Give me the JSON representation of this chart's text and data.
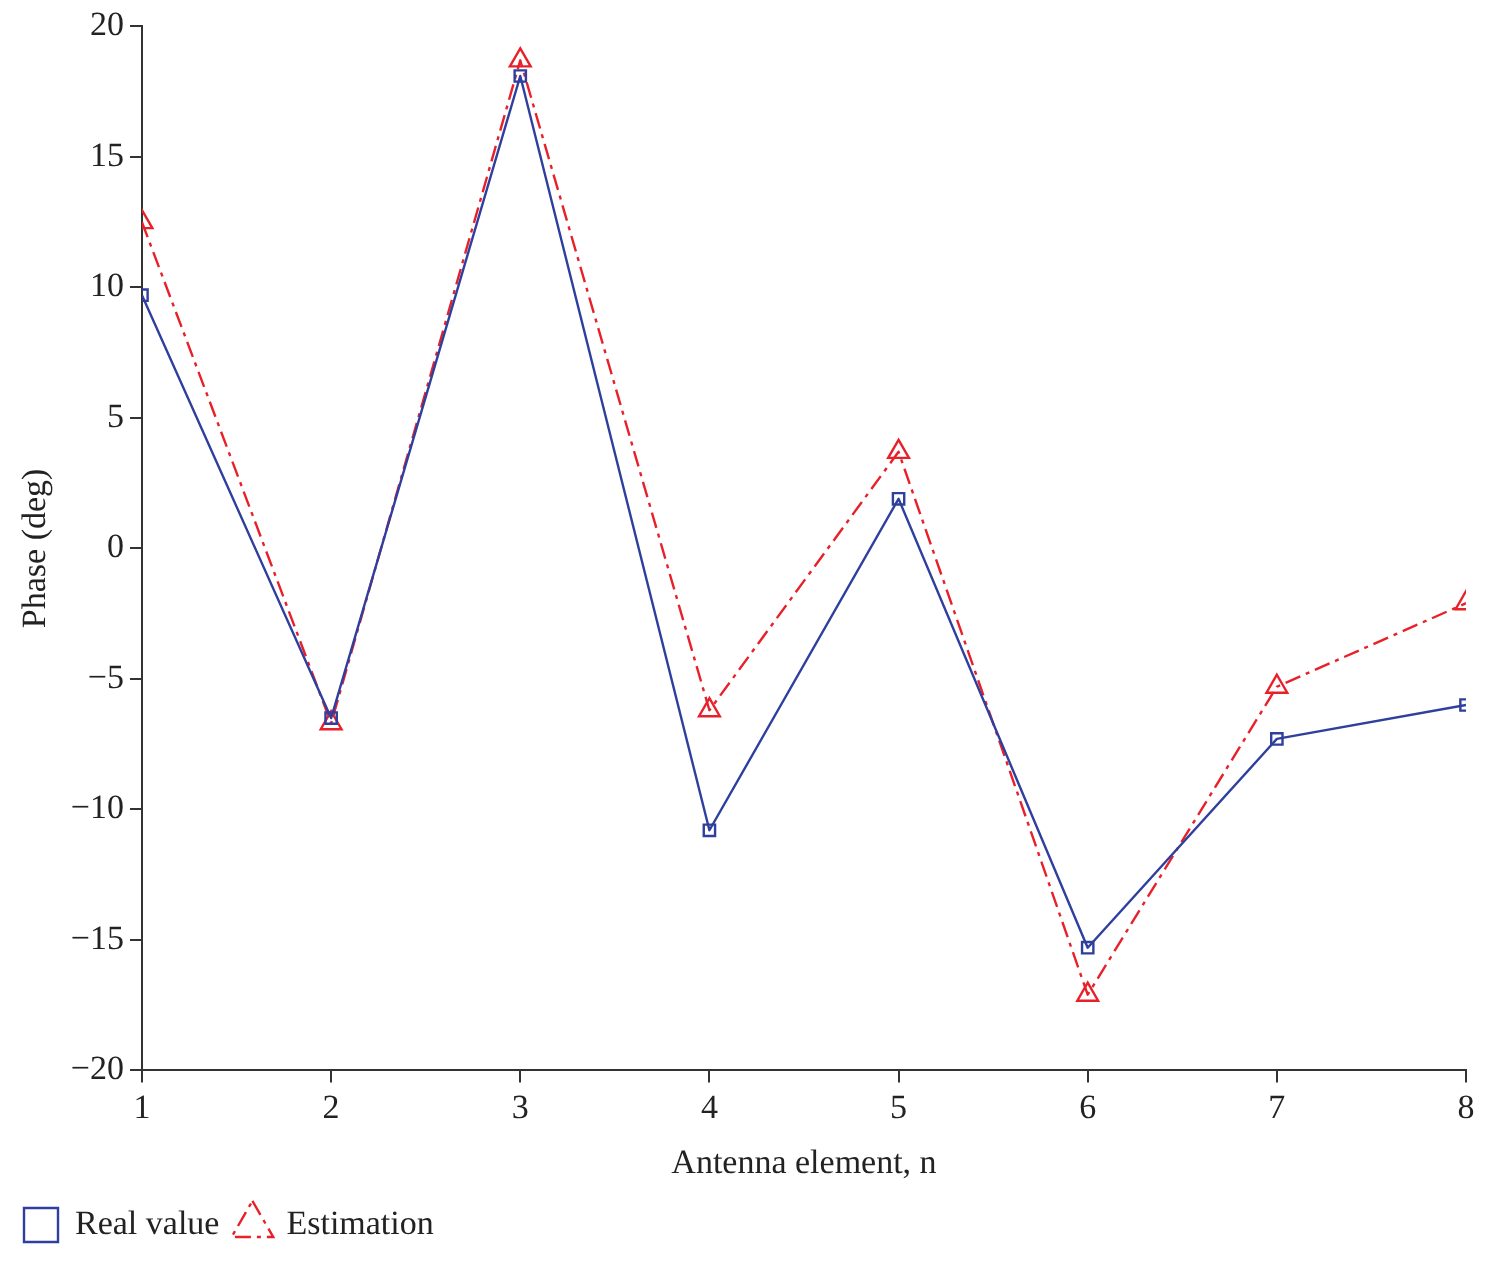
{
  "chart_data": {
    "type": "line",
    "xlabel": "Antenna element, n",
    "ylabel": "Phase (deg)",
    "x": [
      1,
      2,
      3,
      4,
      5,
      6,
      7,
      8
    ],
    "series": [
      {
        "name": "Real value",
        "color": "#2e3f9e",
        "values": [
          9.7,
          -6.5,
          18.1,
          -10.8,
          1.9,
          -15.3,
          -7.3,
          -6.0
        ],
        "marker": "square",
        "line_style": "solid"
      },
      {
        "name": "Estimation",
        "color": "#e8202a",
        "values": [
          12.5,
          -6.7,
          18.7,
          -6.2,
          3.7,
          -17.1,
          -5.3,
          -2.1
        ],
        "marker": "triangle",
        "line_style": "dashdot"
      }
    ],
    "xlim": [
      1,
      8
    ],
    "xticks": [
      1,
      2,
      3,
      4,
      5,
      6,
      7,
      8
    ],
    "ylim": [
      -20,
      20
    ],
    "yticks": [
      -20,
      -15,
      -10,
      -5,
      0,
      5,
      10,
      15,
      20
    ],
    "grid": false,
    "legend": "bottom left"
  }
}
